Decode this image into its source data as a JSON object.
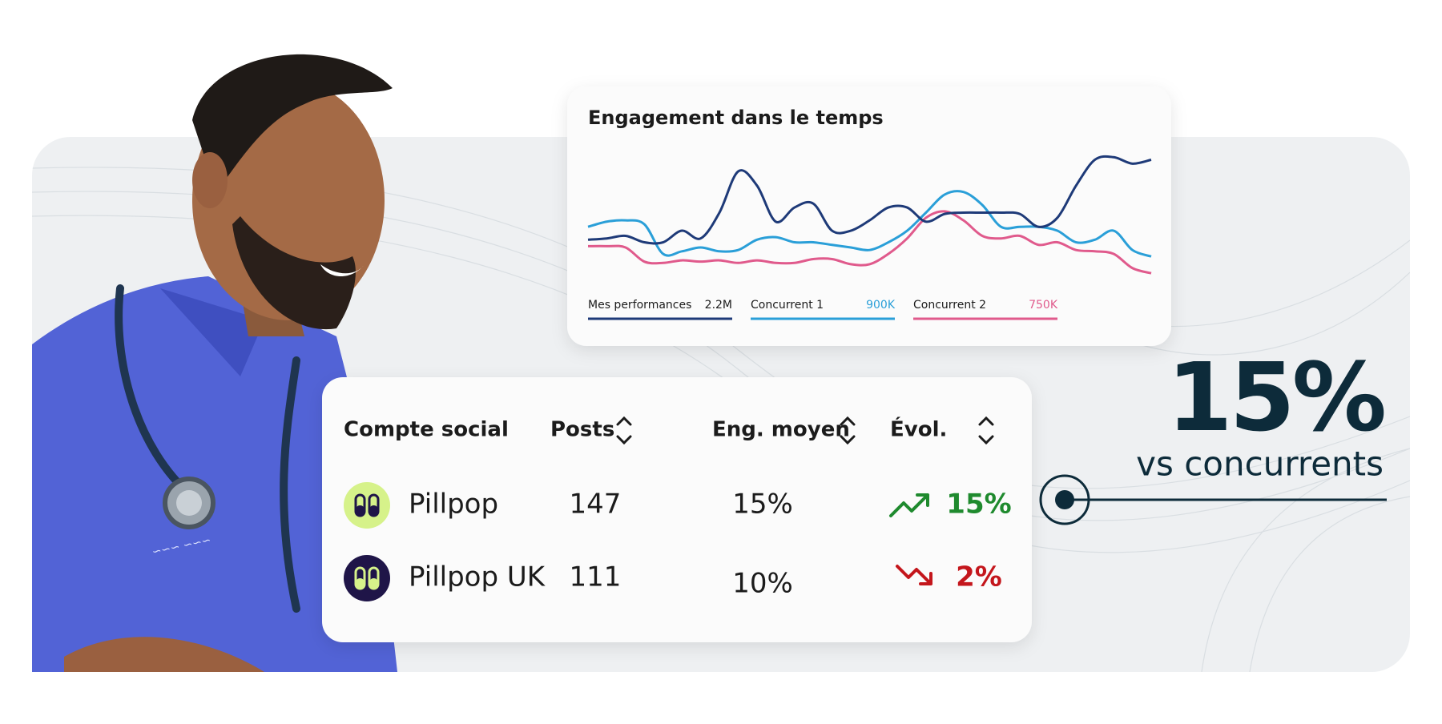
{
  "chart": {
    "type": "line",
    "title": "Engagement dans le temps",
    "ylim": [
      0,
      100
    ],
    "series": [
      {
        "name": "Mes performances",
        "total": "2.2M",
        "color": "#1e3a78",
        "values": [
          29,
          30,
          32,
          27,
          27,
          36,
          30,
          50,
          82,
          71,
          43,
          54,
          57,
          36,
          36,
          44,
          54,
          54,
          43,
          49,
          50,
          50,
          50,
          49,
          39,
          46,
          71,
          91,
          93,
          88,
          91
        ]
      },
      {
        "name": "Concurrent 1",
        "total": "900K",
        "color": "#2a9fd8",
        "values": [
          39,
          43,
          44,
          41,
          18,
          20,
          23,
          20,
          21,
          29,
          31,
          27,
          27,
          25,
          23,
          21,
          27,
          36,
          50,
          64,
          66,
          56,
          39,
          39,
          39,
          36,
          27,
          29,
          36,
          21,
          16
        ]
      },
      {
        "name": "Concurrent 2",
        "total": "750K",
        "color": "#e05a8c",
        "values": [
          24,
          24,
          23,
          12,
          11,
          13,
          12,
          13,
          11,
          13,
          11,
          11,
          14,
          14,
          10,
          10,
          18,
          30,
          46,
          51,
          44,
          32,
          30,
          32,
          25,
          27,
          21,
          20,
          18,
          7,
          3
        ]
      }
    ]
  },
  "table": {
    "headers": [
      "Compte social",
      "Posts",
      "Eng. moyen",
      "Évol."
    ],
    "rows": [
      {
        "name": "Pillpop",
        "posts": 147,
        "engagement": "15%",
        "evolution": "15%",
        "trend": "up",
        "avatar_color": "#d6f28a"
      },
      {
        "name": "Pillpop UK",
        "posts": 111,
        "engagement": "10%",
        "evolution": "2%",
        "trend": "down",
        "avatar_color": "#1f1548"
      }
    ]
  },
  "stat": {
    "value": "15%",
    "caption": "vs concurrents"
  }
}
